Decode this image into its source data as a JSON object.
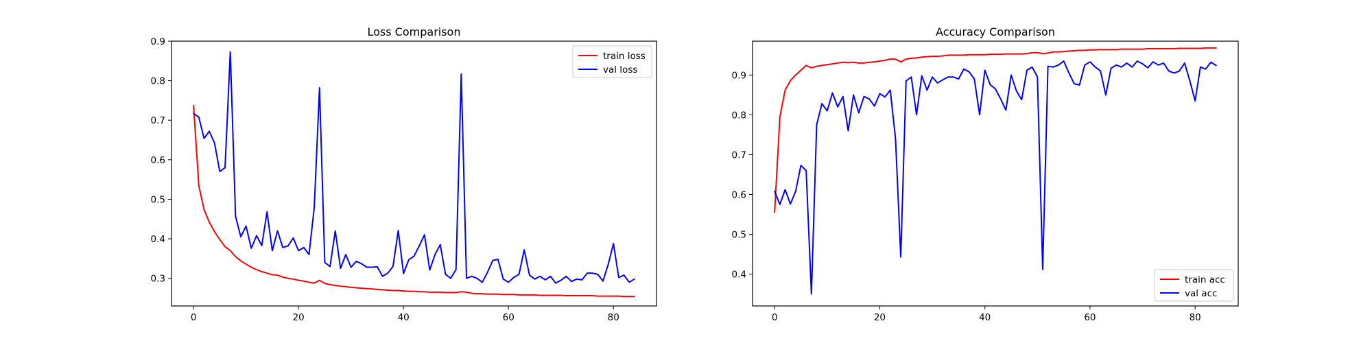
{
  "chart_data": [
    {
      "type": "line",
      "title": "Loss Comparison",
      "xlabel": "",
      "ylabel": "",
      "xlim": [
        -4.2,
        88.2
      ],
      "ylim": [
        0.23,
        0.9
      ],
      "xticks": [
        0,
        20,
        40,
        60,
        80
      ],
      "yticks": [
        0.3,
        0.4,
        0.5,
        0.6,
        0.7,
        0.8,
        0.9
      ],
      "grid": false,
      "legend_position": "upper right",
      "series": [
        {
          "name": "train loss",
          "color": "#ff0000",
          "x": [
            0,
            1,
            2,
            3,
            4,
            5,
            6,
            7,
            8,
            9,
            10,
            11,
            12,
            13,
            14,
            15,
            16,
            17,
            18,
            19,
            20,
            21,
            22,
            23,
            24,
            25,
            26,
            27,
            28,
            29,
            30,
            31,
            32,
            33,
            34,
            35,
            36,
            37,
            38,
            39,
            40,
            41,
            42,
            43,
            44,
            45,
            46,
            47,
            48,
            49,
            50,
            51,
            52,
            53,
            54,
            55,
            56,
            57,
            58,
            59,
            60,
            61,
            62,
            63,
            64,
            65,
            66,
            67,
            68,
            69,
            70,
            71,
            72,
            73,
            74,
            75,
            76,
            77,
            78,
            79,
            80,
            81,
            82,
            83,
            84
          ],
          "y": [
            0.737,
            0.535,
            0.474,
            0.442,
            0.418,
            0.398,
            0.38,
            0.37,
            0.355,
            0.344,
            0.336,
            0.328,
            0.322,
            0.317,
            0.313,
            0.309,
            0.308,
            0.303,
            0.3,
            0.298,
            0.295,
            0.293,
            0.29,
            0.288,
            0.295,
            0.287,
            0.284,
            0.282,
            0.28,
            0.279,
            0.277,
            0.276,
            0.275,
            0.274,
            0.273,
            0.272,
            0.271,
            0.27,
            0.269,
            0.269,
            0.268,
            0.267,
            0.267,
            0.266,
            0.266,
            0.265,
            0.265,
            0.265,
            0.264,
            0.264,
            0.264,
            0.266,
            0.265,
            0.262,
            0.261,
            0.261,
            0.26,
            0.26,
            0.26,
            0.259,
            0.259,
            0.259,
            0.258,
            0.258,
            0.258,
            0.258,
            0.257,
            0.257,
            0.257,
            0.257,
            0.257,
            0.256,
            0.256,
            0.256,
            0.256,
            0.256,
            0.256,
            0.255,
            0.255,
            0.255,
            0.255,
            0.255,
            0.254,
            0.254,
            0.254
          ]
        },
        {
          "name": "val loss",
          "color": "#0000ff",
          "x": [
            0,
            1,
            2,
            3,
            4,
            5,
            6,
            7,
            8,
            9,
            10,
            11,
            12,
            13,
            14,
            15,
            16,
            17,
            18,
            19,
            20,
            21,
            22,
            23,
            24,
            25,
            26,
            27,
            28,
            29,
            30,
            31,
            32,
            33,
            34,
            35,
            36,
            37,
            38,
            39,
            40,
            41,
            42,
            43,
            44,
            45,
            46,
            47,
            48,
            49,
            50,
            51,
            52,
            53,
            54,
            55,
            56,
            57,
            58,
            59,
            60,
            61,
            62,
            63,
            64,
            65,
            66,
            67,
            68,
            69,
            70,
            71,
            72,
            73,
            74,
            75,
            76,
            77,
            78,
            79,
            80,
            81,
            82,
            83,
            84
          ],
          "y": [
            0.717,
            0.708,
            0.654,
            0.672,
            0.642,
            0.57,
            0.58,
            0.873,
            0.457,
            0.405,
            0.432,
            0.376,
            0.408,
            0.383,
            0.468,
            0.37,
            0.42,
            0.378,
            0.382,
            0.402,
            0.37,
            0.378,
            0.36,
            0.48,
            0.782,
            0.34,
            0.33,
            0.42,
            0.325,
            0.36,
            0.328,
            0.343,
            0.337,
            0.328,
            0.328,
            0.329,
            0.305,
            0.313,
            0.33,
            0.421,
            0.312,
            0.347,
            0.356,
            0.382,
            0.41,
            0.321,
            0.36,
            0.385,
            0.31,
            0.3,
            0.322,
            0.817,
            0.3,
            0.305,
            0.3,
            0.29,
            0.315,
            0.345,
            0.348,
            0.298,
            0.29,
            0.302,
            0.31,
            0.372,
            0.308,
            0.298,
            0.305,
            0.296,
            0.305,
            0.288,
            0.295,
            0.305,
            0.292,
            0.298,
            0.296,
            0.313,
            0.313,
            0.31,
            0.293,
            0.335,
            0.388,
            0.302,
            0.308,
            0.29,
            0.298
          ]
        }
      ]
    },
    {
      "type": "line",
      "title": "Accuracy Comparison",
      "xlabel": "",
      "ylabel": "",
      "xlim": [
        -4.2,
        88.2
      ],
      "ylim": [
        0.32,
        0.985
      ],
      "xticks": [
        0,
        20,
        40,
        60,
        80
      ],
      "yticks": [
        0.4,
        0.5,
        0.6,
        0.7,
        0.8,
        0.9
      ],
      "grid": false,
      "legend_position": "lower right",
      "series": [
        {
          "name": "train acc",
          "color": "#ff0000",
          "x": [
            0,
            1,
            2,
            3,
            4,
            5,
            6,
            7,
            8,
            9,
            10,
            11,
            12,
            13,
            14,
            15,
            16,
            17,
            18,
            19,
            20,
            21,
            22,
            23,
            24,
            25,
            26,
            27,
            28,
            29,
            30,
            31,
            32,
            33,
            34,
            35,
            36,
            37,
            38,
            39,
            40,
            41,
            42,
            43,
            44,
            45,
            46,
            47,
            48,
            49,
            50,
            51,
            52,
            53,
            54,
            55,
            56,
            57,
            58,
            59,
            60,
            61,
            62,
            63,
            64,
            65,
            66,
            67,
            68,
            69,
            70,
            71,
            72,
            73,
            74,
            75,
            76,
            77,
            78,
            79,
            80,
            81,
            82,
            83,
            84
          ],
          "y": [
            0.555,
            0.795,
            0.862,
            0.886,
            0.9,
            0.912,
            0.924,
            0.918,
            0.922,
            0.924,
            0.926,
            0.928,
            0.93,
            0.932,
            0.931,
            0.932,
            0.93,
            0.93,
            0.932,
            0.933,
            0.935,
            0.937,
            0.94,
            0.94,
            0.933,
            0.94,
            0.942,
            0.943,
            0.945,
            0.946,
            0.947,
            0.947,
            0.948,
            0.95,
            0.95,
            0.95,
            0.95,
            0.951,
            0.951,
            0.951,
            0.951,
            0.952,
            0.952,
            0.952,
            0.953,
            0.953,
            0.953,
            0.953,
            0.954,
            0.956,
            0.956,
            0.954,
            0.955,
            0.958,
            0.958,
            0.959,
            0.96,
            0.961,
            0.962,
            0.962,
            0.963,
            0.963,
            0.964,
            0.964,
            0.964,
            0.964,
            0.965,
            0.965,
            0.965,
            0.965,
            0.965,
            0.966,
            0.966,
            0.966,
            0.966,
            0.966,
            0.966,
            0.967,
            0.967,
            0.967,
            0.967,
            0.967,
            0.968,
            0.968,
            0.968
          ]
        },
        {
          "name": "val acc",
          "color": "#0000ff",
          "x": [
            0,
            1,
            2,
            3,
            4,
            5,
            6,
            7,
            8,
            9,
            10,
            11,
            12,
            13,
            14,
            15,
            16,
            17,
            18,
            19,
            20,
            21,
            22,
            23,
            24,
            25,
            26,
            27,
            28,
            29,
            30,
            31,
            32,
            33,
            34,
            35,
            36,
            37,
            38,
            39,
            40,
            41,
            42,
            43,
            44,
            45,
            46,
            47,
            48,
            49,
            50,
            51,
            52,
            53,
            54,
            55,
            56,
            57,
            58,
            59,
            60,
            61,
            62,
            63,
            64,
            65,
            66,
            67,
            68,
            69,
            70,
            71,
            72,
            73,
            74,
            75,
            76,
            77,
            78,
            79,
            80,
            81,
            82,
            83,
            84
          ],
          "y": [
            0.608,
            0.575,
            0.612,
            0.576,
            0.608,
            0.673,
            0.66,
            0.35,
            0.775,
            0.828,
            0.81,
            0.855,
            0.82,
            0.846,
            0.76,
            0.85,
            0.805,
            0.846,
            0.84,
            0.822,
            0.853,
            0.845,
            0.862,
            0.74,
            0.443,
            0.885,
            0.895,
            0.8,
            0.898,
            0.862,
            0.895,
            0.88,
            0.888,
            0.895,
            0.895,
            0.89,
            0.915,
            0.908,
            0.89,
            0.8,
            0.912,
            0.876,
            0.865,
            0.84,
            0.812,
            0.9,
            0.86,
            0.838,
            0.912,
            0.92,
            0.895,
            0.412,
            0.922,
            0.92,
            0.925,
            0.935,
            0.905,
            0.878,
            0.875,
            0.925,
            0.933,
            0.92,
            0.91,
            0.85,
            0.917,
            0.925,
            0.92,
            0.93,
            0.92,
            0.935,
            0.928,
            0.918,
            0.933,
            0.925,
            0.93,
            0.91,
            0.905,
            0.91,
            0.93,
            0.885,
            0.835,
            0.92,
            0.915,
            0.932,
            0.924
          ]
        }
      ]
    }
  ]
}
